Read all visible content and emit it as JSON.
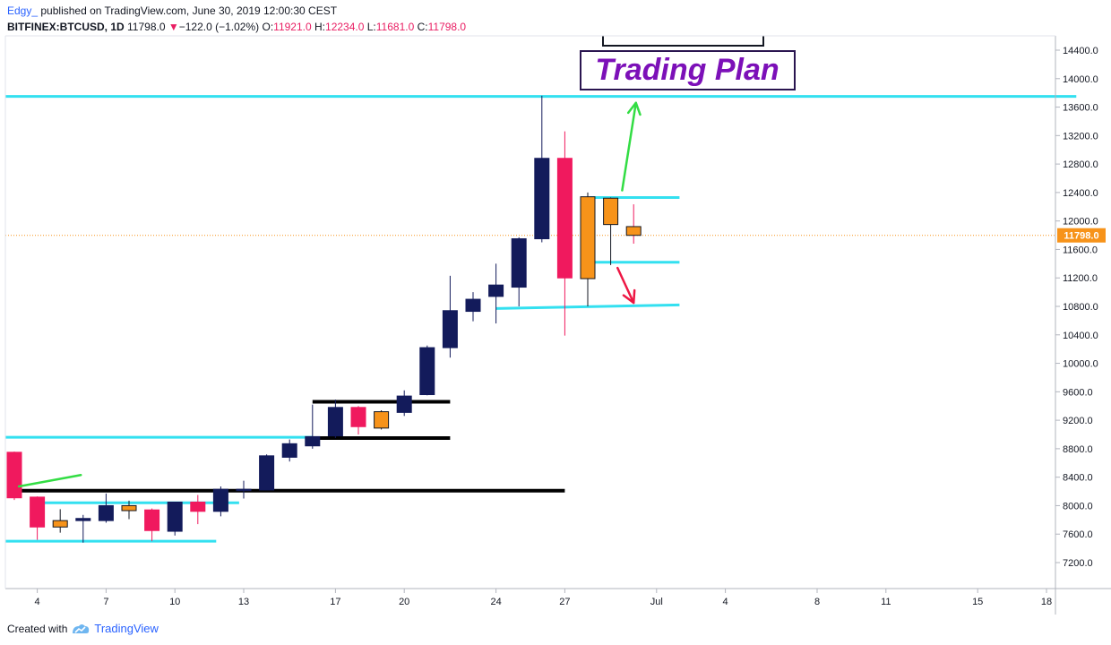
{
  "header": {
    "author": "Edgy_",
    "published": "published on TradingView.com, June 30, 2019 12:00:30 CEST",
    "symbol": "BITFINEX:BTCUSD, 1D",
    "last": "11798.0",
    "change_arrow": "▼",
    "change": "−122.0 (−1.02%)",
    "o_label": "O:",
    "o_val": "11921.0",
    "h_label": "H:",
    "h_val": "12234.0",
    "l_label": "L:",
    "l_val": "11681.0",
    "c_label": "C:",
    "c_val": "11798.0"
  },
  "footer": {
    "created_with": "Created with",
    "brand": "TradingView",
    "logo_icon": "tradingview-logo-icon"
  },
  "colors": {
    "bull": "#131b5b",
    "bear": "#f0195e",
    "doji": "#f7931a",
    "support": "#33e0f0",
    "black_level": "#000000",
    "up_arrow": "#33dd44",
    "down_arrow": "#ee1744",
    "price_line": "#f7931a",
    "title_color": "#7c10b8"
  },
  "chart_data": {
    "type": "candlestick",
    "title": "Trading Plan",
    "ylim": [
      6900,
      14700
    ],
    "y_ticks": [
      7200,
      7600,
      8000,
      8400,
      8800,
      9200,
      9600,
      10000,
      10400,
      10800,
      11200,
      11600,
      12000,
      12400,
      12800,
      13200,
      13600,
      14000,
      14400
    ],
    "y_tick_labels": [
      "7200.0",
      "7600.0",
      "8000.0",
      "8400.0",
      "8800.0",
      "9200.0",
      "9600.0",
      "10000.0",
      "10400.0",
      "10800.0",
      "11200.0",
      "11600.0",
      "12000.0",
      "12400.0",
      "12800.0",
      "13200.0",
      "13600.0",
      "14000.0",
      "14400.0"
    ],
    "x_ticks": [
      {
        "day": 4,
        "label": "4"
      },
      {
        "day": 7,
        "label": "7"
      },
      {
        "day": 10,
        "label": "10"
      },
      {
        "day": 13,
        "label": "13"
      },
      {
        "day": 17,
        "label": "17"
      },
      {
        "day": 20,
        "label": "20"
      },
      {
        "day": 24,
        "label": "24"
      },
      {
        "day": 27,
        "label": "27"
      },
      {
        "day": 31,
        "label": "Jul"
      },
      {
        "day": 34,
        "label": "4"
      },
      {
        "day": 38,
        "label": "8"
      },
      {
        "day": 41,
        "label": "11"
      },
      {
        "day": 45,
        "label": "15"
      },
      {
        "day": 48,
        "label": "18"
      }
    ],
    "candles": [
      {
        "day": 3,
        "o": 8750,
        "h": 8760,
        "l": 8080,
        "c": 8110
      },
      {
        "day": 4,
        "o": 8120,
        "h": 8130,
        "l": 7520,
        "c": 7700
      },
      {
        "day": 5,
        "o": 7700,
        "h": 7950,
        "l": 7620,
        "c": 7790
      },
      {
        "day": 6,
        "o": 7790,
        "h": 7870,
        "l": 7480,
        "c": 7820
      },
      {
        "day": 7,
        "o": 7790,
        "h": 8170,
        "l": 7760,
        "c": 8000
      },
      {
        "day": 8,
        "o": 8000,
        "h": 8070,
        "l": 7810,
        "c": 7930
      },
      {
        "day": 9,
        "o": 7940,
        "h": 7960,
        "l": 7500,
        "c": 7650
      },
      {
        "day": 10,
        "o": 7640,
        "h": 8030,
        "l": 7580,
        "c": 8050
      },
      {
        "day": 11,
        "o": 8050,
        "h": 8150,
        "l": 7740,
        "c": 7920
      },
      {
        "day": 12,
        "o": 7920,
        "h": 8270,
        "l": 7850,
        "c": 8230
      },
      {
        "day": 13,
        "o": 8230,
        "h": 8350,
        "l": 8100,
        "c": 8230
      },
      {
        "day": 14,
        "o": 8220,
        "h": 8720,
        "l": 8220,
        "c": 8700
      },
      {
        "day": 15,
        "o": 8680,
        "h": 8930,
        "l": 8620,
        "c": 8870
      },
      {
        "day": 16,
        "o": 8840,
        "h": 9420,
        "l": 8800,
        "c": 8970
      },
      {
        "day": 17,
        "o": 8980,
        "h": 9490,
        "l": 8950,
        "c": 9380
      },
      {
        "day": 18,
        "o": 9380,
        "h": 9400,
        "l": 9000,
        "c": 9110
      },
      {
        "day": 19,
        "o": 9090,
        "h": 9340,
        "l": 9070,
        "c": 9320
      },
      {
        "day": 20,
        "o": 9310,
        "h": 9620,
        "l": 9260,
        "c": 9540
      },
      {
        "day": 21,
        "o": 9560,
        "h": 10250,
        "l": 9550,
        "c": 10220
      },
      {
        "day": 22,
        "o": 10220,
        "h": 11230,
        "l": 10080,
        "c": 10740
      },
      {
        "day": 23,
        "o": 10730,
        "h": 11000,
        "l": 10590,
        "c": 10900
      },
      {
        "day": 24,
        "o": 10940,
        "h": 11400,
        "l": 10560,
        "c": 11100
      },
      {
        "day": 25,
        "o": 11070,
        "h": 11770,
        "l": 10800,
        "c": 11750
      },
      {
        "day": 26,
        "o": 11750,
        "h": 13760,
        "l": 11700,
        "c": 12880
      },
      {
        "day": 27,
        "o": 12880,
        "h": 13260,
        "l": 10390,
        "c": 11200
      },
      {
        "day": 28,
        "o": 11190,
        "h": 12400,
        "l": 10800,
        "c": 12340
      },
      {
        "day": 29,
        "o": 12320,
        "h": 12330,
        "l": 11380,
        "c": 11950
      },
      {
        "day": 30,
        "o": 11921,
        "h": 12234,
        "l": 11681,
        "c": 11798
      }
    ],
    "levels": [
      {
        "price": 13750,
        "from_day": 2.6,
        "to_day": 49.3,
        "color": "support"
      },
      {
        "price": 12330,
        "from_day": 28.1,
        "to_day": 32.0,
        "color": "support"
      },
      {
        "price": 11420,
        "from_day": 28.1,
        "to_day": 32.0,
        "color": "support"
      },
      {
        "price": 10770,
        "from_day": 24.0,
        "to_day": 32.0,
        "price_end": 10820,
        "color": "support"
      },
      {
        "price": 8960,
        "from_day": 2.6,
        "to_day": 16.0,
        "color": "support"
      },
      {
        "price": 8040,
        "from_day": 4.0,
        "to_day": 12.8,
        "color": "support"
      },
      {
        "price": 7500,
        "from_day": 2.6,
        "to_day": 11.8,
        "color": "support"
      },
      {
        "price": 9460,
        "from_day": 16.0,
        "to_day": 22.0,
        "color": "black_level"
      },
      {
        "price": 8950,
        "from_day": 16.0,
        "to_day": 22.0,
        "color": "black_level"
      },
      {
        "price": 8210,
        "from_day": 3.0,
        "to_day": 27.0,
        "color": "black_level"
      }
    ],
    "arrows": [
      {
        "from_day": 29.5,
        "from_price": 12430,
        "to_day": 30.1,
        "to_price": 13660,
        "color": "up_arrow"
      },
      {
        "from_day": 29.3,
        "from_price": 11340,
        "to_day": 30.0,
        "to_price": 10850,
        "color": "down_arrow"
      },
      {
        "from_day": 3.2,
        "from_price": 8270,
        "to_day": 5.9,
        "to_price": 8430,
        "color": "up_arrow"
      }
    ],
    "current_price": 11798,
    "current_price_label": "11798.0"
  }
}
